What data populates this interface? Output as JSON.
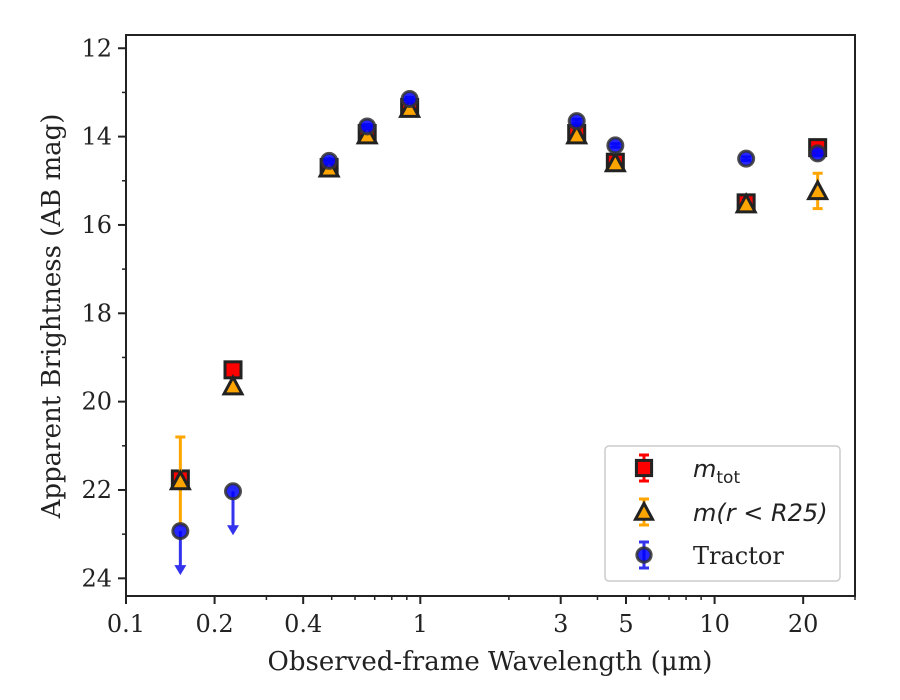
{
  "chart_data": {
    "type": "scatter",
    "xscale": "log",
    "xlim": [
      0.1,
      30
    ],
    "ylim": [
      24.4,
      11.7
    ],
    "y_inverted": true,
    "grid": false,
    "legend_position": "lower-right",
    "xlabel": "Observed-frame Wavelength (μm)",
    "ylabel": "Apparent Brightness (AB mag)",
    "x_ticks": [
      {
        "value": 0.1,
        "label": "0.1"
      },
      {
        "value": 0.2,
        "label": "0.2"
      },
      {
        "value": 0.4,
        "label": "0.4"
      },
      {
        "value": 1,
        "label": "1"
      },
      {
        "value": 3,
        "label": "3"
      },
      {
        "value": 5,
        "label": "5"
      },
      {
        "value": 10,
        "label": "10"
      },
      {
        "value": 20,
        "label": "20"
      }
    ],
    "y_ticks": [
      {
        "value": 12,
        "label": "12"
      },
      {
        "value": 14,
        "label": "14"
      },
      {
        "value": 16,
        "label": "16"
      },
      {
        "value": 18,
        "label": "18"
      },
      {
        "value": 20,
        "label": "20"
      },
      {
        "value": 22,
        "label": "22"
      },
      {
        "value": 24,
        "label": "24"
      }
    ],
    "series": [
      {
        "key": "mtot",
        "legend_main": "m",
        "legend_sub": "tot",
        "legend_rest": "",
        "marker": "square",
        "color": "#ff0000",
        "points": [
          {
            "x": 0.153,
            "y": 21.75,
            "err": 0.08
          },
          {
            "x": 0.231,
            "y": 19.28,
            "err": 0.05
          },
          {
            "x": 0.49,
            "y": 14.7,
            "err": 0.06
          },
          {
            "x": 0.66,
            "y": 13.93,
            "err": 0.06
          },
          {
            "x": 0.92,
            "y": 13.34,
            "err": 0.06
          },
          {
            "x": 3.4,
            "y": 13.93,
            "err": 0.08
          },
          {
            "x": 4.6,
            "y": 14.58,
            "err": 0.08
          },
          {
            "x": 12.8,
            "y": 15.5,
            "err": 0.05
          },
          {
            "x": 22.4,
            "y": 14.25,
            "err": 0.07
          }
        ]
      },
      {
        "key": "mr25",
        "legend_main": "m",
        "legend_sub": "",
        "legend_rest": "(r < R25)",
        "marker": "triangle",
        "color": "#ffa500",
        "points": [
          {
            "x": 0.153,
            "y": 21.8,
            "err": 1.0
          },
          {
            "x": 0.231,
            "y": 19.65,
            "err": 0.05
          },
          {
            "x": 0.49,
            "y": 14.72,
            "err": 0.05
          },
          {
            "x": 0.66,
            "y": 13.97,
            "err": 0.05
          },
          {
            "x": 0.92,
            "y": 13.37,
            "err": 0.05
          },
          {
            "x": 3.4,
            "y": 13.97,
            "err": 0.05
          },
          {
            "x": 4.6,
            "y": 14.6,
            "err": 0.05
          },
          {
            "x": 12.8,
            "y": 15.53,
            "err": 0.05
          },
          {
            "x": 22.4,
            "y": 15.23,
            "err": 0.4
          }
        ]
      },
      {
        "key": "tractor",
        "legend_main": "Tractor",
        "legend_sub": "",
        "legend_rest": "",
        "marker": "circle",
        "color": "#0000ff",
        "points": [
          {
            "x": 0.153,
            "y": 22.93,
            "err": 0,
            "upper_limit": true
          },
          {
            "x": 0.231,
            "y": 22.03,
            "err": 0,
            "upper_limit": true
          },
          {
            "x": 0.49,
            "y": 14.55,
            "err": 0.04
          },
          {
            "x": 0.66,
            "y": 13.77,
            "err": 0.04
          },
          {
            "x": 0.92,
            "y": 13.15,
            "err": 0.04
          },
          {
            "x": 3.4,
            "y": 13.65,
            "err": 0.04
          },
          {
            "x": 4.6,
            "y": 14.2,
            "err": 0.04
          },
          {
            "x": 12.8,
            "y": 14.5,
            "err": 0.04
          },
          {
            "x": 22.4,
            "y": 14.38,
            "err": 0.05
          }
        ]
      }
    ]
  }
}
